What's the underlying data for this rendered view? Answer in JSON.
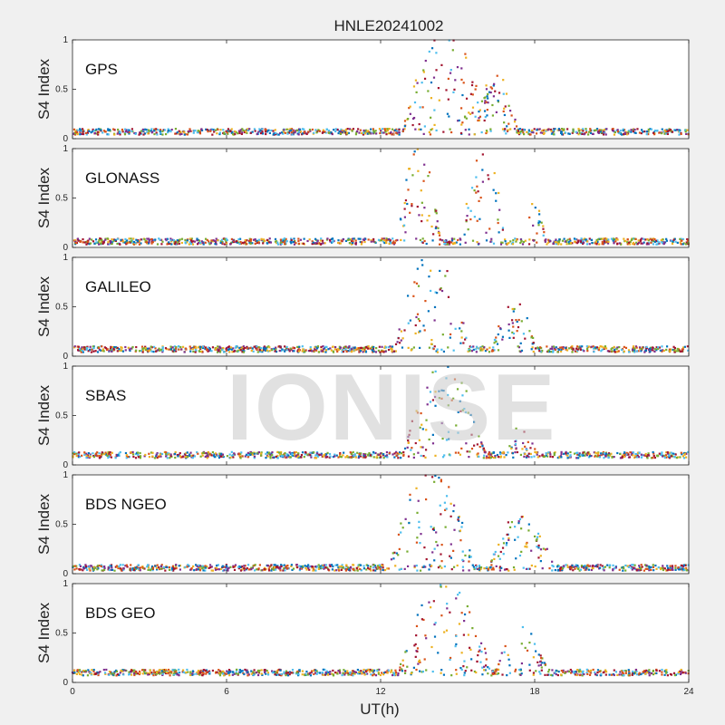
{
  "title": "HNLE20241002",
  "xlabel": "UT(h)",
  "watermark_text": "IONISE",
  "colors": [
    "#0072bd",
    "#d95319",
    "#edb120",
    "#7e2f8e",
    "#77ac30",
    "#4dbeee",
    "#a2142f"
  ],
  "chart_data": {
    "type": "scatter",
    "x_ticks": [
      0,
      6,
      12,
      18,
      24
    ],
    "xlim": [
      0,
      24
    ],
    "ylim": [
      0,
      1
    ],
    "y_ticks": [
      0,
      0.5,
      1
    ],
    "y_tick_labels": [
      "0",
      "0.5",
      "1"
    ],
    "grid": false,
    "panels": [
      {
        "name": "GPS",
        "ylabel": "S4 Index",
        "baseline": 0.07,
        "activity": [
          {
            "center": 14.5,
            "width": 3.2,
            "peak": 1.0
          },
          {
            "center": 16.5,
            "width": 1.6,
            "peak": 0.55
          }
        ]
      },
      {
        "name": "GLONASS",
        "ylabel": "S4 Index",
        "baseline": 0.06,
        "activity": [
          {
            "center": 13.5,
            "width": 1.6,
            "peak": 0.95
          },
          {
            "center": 16.0,
            "width": 1.6,
            "peak": 1.0
          },
          {
            "center": 18.0,
            "width": 0.8,
            "peak": 0.35
          }
        ]
      },
      {
        "name": "GALILEO",
        "ylabel": "S4 Index",
        "baseline": 0.07,
        "activity": [
          {
            "center": 14.0,
            "width": 2.8,
            "peak": 0.95
          },
          {
            "center": 17.2,
            "width": 1.6,
            "peak": 0.45
          }
        ]
      },
      {
        "name": "SBAS",
        "ylabel": "S4 Index",
        "baseline": 0.1,
        "activity": [
          {
            "center": 14.5,
            "width": 3.2,
            "peak": 0.95
          },
          {
            "center": 17.5,
            "width": 1.2,
            "peak": 0.3
          }
        ]
      },
      {
        "name": "BDS NGEO",
        "ylabel": "S4 Index",
        "baseline": 0.06,
        "activity": [
          {
            "center": 14.0,
            "width": 3.2,
            "peak": 0.95
          },
          {
            "center": 17.5,
            "width": 2.4,
            "peak": 0.5
          }
        ]
      },
      {
        "name": "BDS GEO",
        "ylabel": "S4 Index",
        "baseline": 0.1,
        "activity": [
          {
            "center": 14.5,
            "width": 3.6,
            "peak": 0.9
          },
          {
            "center": 17.5,
            "width": 2.0,
            "peak": 0.45
          }
        ]
      }
    ]
  }
}
